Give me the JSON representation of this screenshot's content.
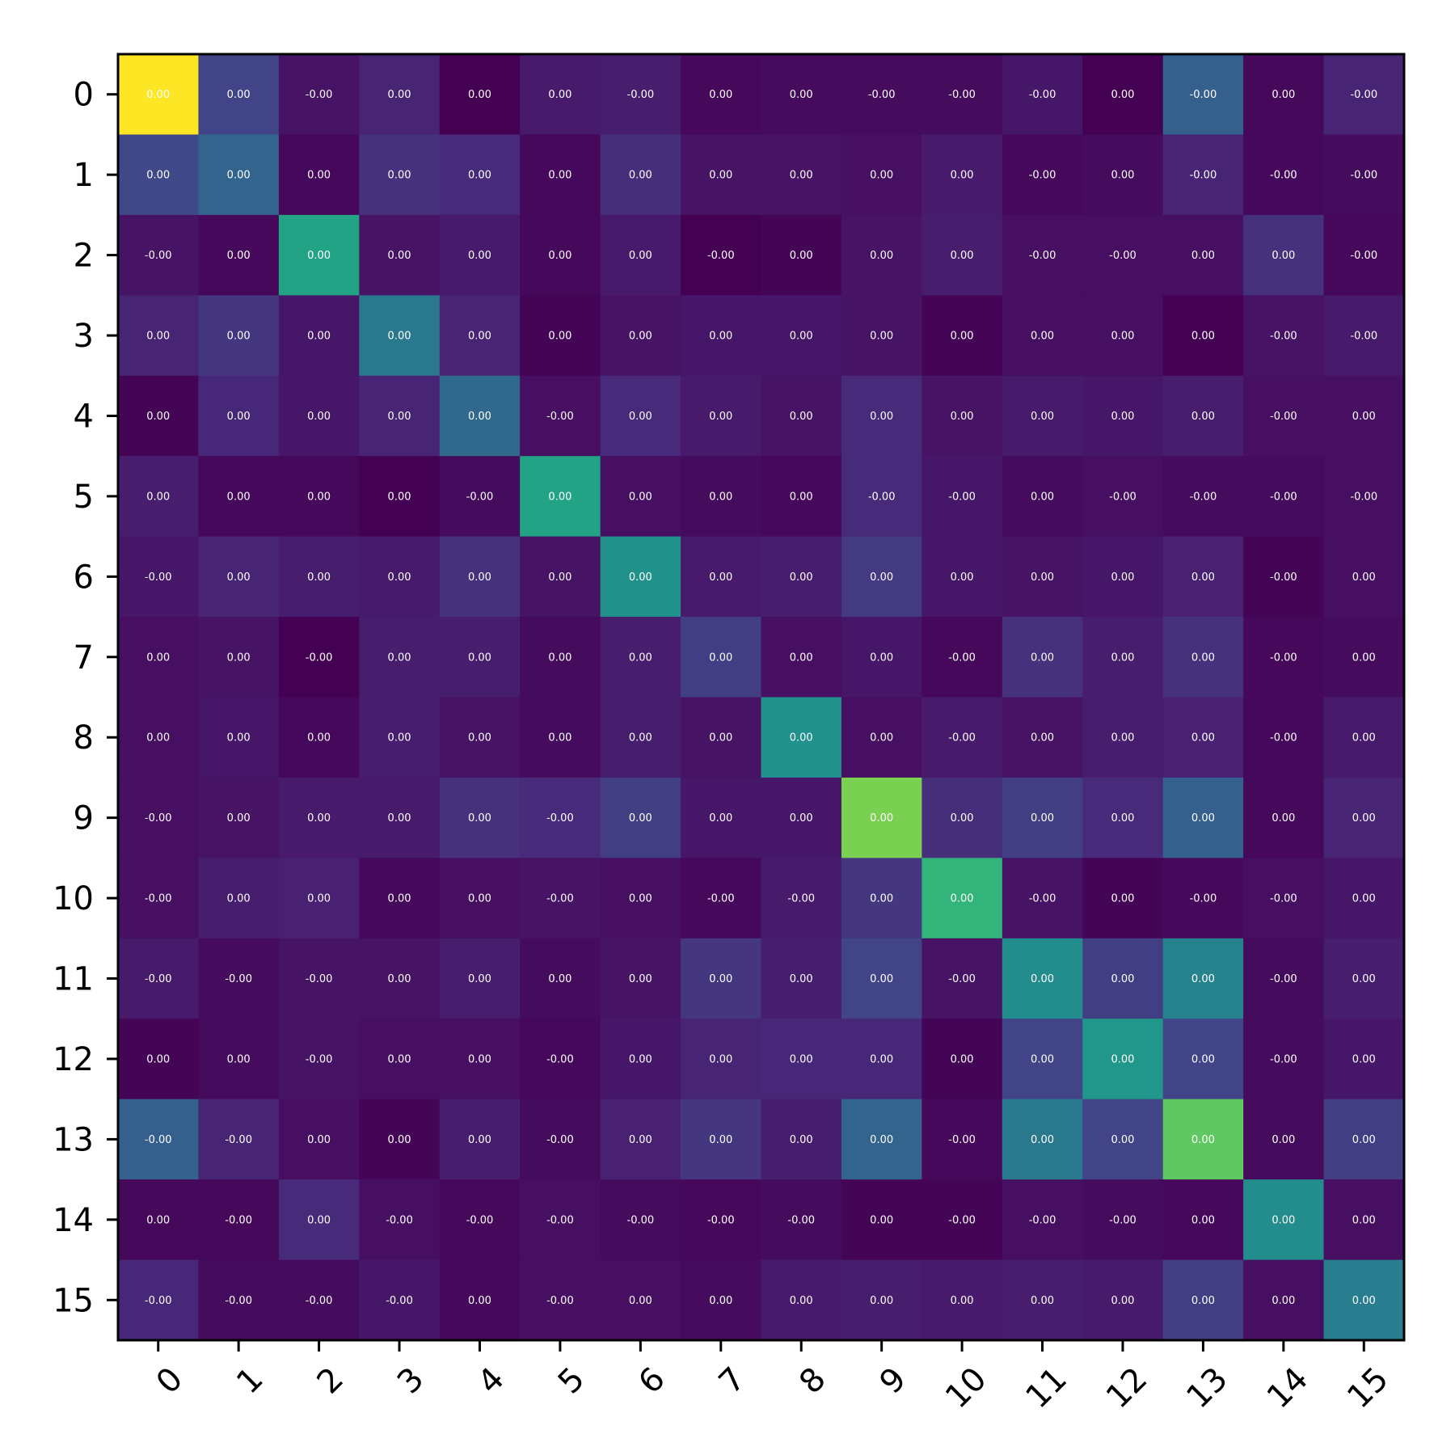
{
  "chart_data": {
    "type": "heatmap",
    "title": "",
    "xlabel": "",
    "ylabel": "",
    "x_categories": [
      "0",
      "1",
      "2",
      "3",
      "4",
      "5",
      "6",
      "7",
      "8",
      "9",
      "10",
      "11",
      "12",
      "13",
      "14",
      "15"
    ],
    "y_categories": [
      "0",
      "1",
      "2",
      "3",
      "4",
      "5",
      "6",
      "7",
      "8",
      "9",
      "10",
      "11",
      "12",
      "13",
      "14",
      "15"
    ],
    "colormap": "viridis",
    "color_range": [
      0,
      1
    ],
    "grid": false,
    "legend": "none",
    "cell_labels": [
      [
        "0.00",
        "0.00",
        "-0.00",
        "0.00",
        "0.00",
        "0.00",
        "-0.00",
        "0.00",
        "0.00",
        "-0.00",
        "-0.00",
        "-0.00",
        "0.00",
        "-0.00",
        "0.00",
        "-0.00"
      ],
      [
        "0.00",
        "0.00",
        "0.00",
        "0.00",
        "0.00",
        "0.00",
        "0.00",
        "0.00",
        "0.00",
        "0.00",
        "0.00",
        "-0.00",
        "0.00",
        "-0.00",
        "-0.00",
        "-0.00"
      ],
      [
        "-0.00",
        "0.00",
        "0.00",
        "0.00",
        "0.00",
        "0.00",
        "0.00",
        "-0.00",
        "0.00",
        "0.00",
        "0.00",
        "-0.00",
        "-0.00",
        "0.00",
        "0.00",
        "-0.00"
      ],
      [
        "0.00",
        "0.00",
        "0.00",
        "0.00",
        "0.00",
        "0.00",
        "0.00",
        "0.00",
        "0.00",
        "0.00",
        "0.00",
        "0.00",
        "0.00",
        "0.00",
        "-0.00",
        "-0.00"
      ],
      [
        "0.00",
        "0.00",
        "0.00",
        "0.00",
        "0.00",
        "-0.00",
        "0.00",
        "0.00",
        "0.00",
        "0.00",
        "0.00",
        "0.00",
        "0.00",
        "0.00",
        "-0.00",
        "0.00"
      ],
      [
        "0.00",
        "0.00",
        "0.00",
        "0.00",
        "-0.00",
        "0.00",
        "0.00",
        "0.00",
        "0.00",
        "-0.00",
        "-0.00",
        "0.00",
        "-0.00",
        "-0.00",
        "-0.00",
        "-0.00"
      ],
      [
        "-0.00",
        "0.00",
        "0.00",
        "0.00",
        "0.00",
        "0.00",
        "0.00",
        "0.00",
        "0.00",
        "0.00",
        "0.00",
        "0.00",
        "0.00",
        "0.00",
        "-0.00",
        "0.00"
      ],
      [
        "0.00",
        "0.00",
        "-0.00",
        "0.00",
        "0.00",
        "0.00",
        "0.00",
        "0.00",
        "0.00",
        "0.00",
        "-0.00",
        "0.00",
        "0.00",
        "0.00",
        "-0.00",
        "0.00"
      ],
      [
        "0.00",
        "0.00",
        "0.00",
        "0.00",
        "0.00",
        "0.00",
        "0.00",
        "0.00",
        "0.00",
        "0.00",
        "-0.00",
        "0.00",
        "0.00",
        "0.00",
        "-0.00",
        "0.00"
      ],
      [
        "-0.00",
        "0.00",
        "0.00",
        "0.00",
        "0.00",
        "-0.00",
        "0.00",
        "0.00",
        "0.00",
        "0.00",
        "0.00",
        "0.00",
        "0.00",
        "0.00",
        "0.00",
        "0.00"
      ],
      [
        "-0.00",
        "0.00",
        "0.00",
        "0.00",
        "0.00",
        "-0.00",
        "0.00",
        "-0.00",
        "-0.00",
        "0.00",
        "0.00",
        "-0.00",
        "0.00",
        "-0.00",
        "-0.00",
        "0.00"
      ],
      [
        "-0.00",
        "-0.00",
        "-0.00",
        "0.00",
        "0.00",
        "0.00",
        "0.00",
        "0.00",
        "0.00",
        "0.00",
        "-0.00",
        "0.00",
        "0.00",
        "0.00",
        "-0.00",
        "0.00"
      ],
      [
        "0.00",
        "0.00",
        "-0.00",
        "0.00",
        "0.00",
        "-0.00",
        "0.00",
        "0.00",
        "0.00",
        "0.00",
        "0.00",
        "0.00",
        "0.00",
        "0.00",
        "-0.00",
        "0.00"
      ],
      [
        "-0.00",
        "-0.00",
        "0.00",
        "0.00",
        "0.00",
        "-0.00",
        "0.00",
        "0.00",
        "0.00",
        "0.00",
        "-0.00",
        "0.00",
        "0.00",
        "0.00",
        "0.00",
        "0.00"
      ],
      [
        "0.00",
        "-0.00",
        "0.00",
        "-0.00",
        "-0.00",
        "-0.00",
        "-0.00",
        "-0.00",
        "-0.00",
        "0.00",
        "-0.00",
        "-0.00",
        "-0.00",
        "0.00",
        "0.00",
        "0.00"
      ],
      [
        "-0.00",
        "-0.00",
        "-0.00",
        "-0.00",
        "0.00",
        "-0.00",
        "0.00",
        "0.00",
        "0.00",
        "0.00",
        "0.00",
        "0.00",
        "0.00",
        "0.00",
        "0.00",
        "0.00"
      ]
    ],
    "color_values": [
      [
        1.0,
        0.2,
        0.05,
        0.1,
        0.0,
        0.07,
        0.08,
        0.02,
        0.03,
        0.03,
        0.03,
        0.06,
        0.0,
        0.3,
        0.02,
        0.1
      ],
      [
        0.22,
        0.32,
        0.02,
        0.14,
        0.12,
        0.02,
        0.13,
        0.05,
        0.05,
        0.04,
        0.07,
        0.02,
        0.03,
        0.1,
        0.02,
        0.03
      ],
      [
        0.05,
        0.02,
        0.58,
        0.05,
        0.07,
        0.02,
        0.07,
        0.0,
        0.01,
        0.05,
        0.08,
        0.04,
        0.04,
        0.04,
        0.14,
        0.02
      ],
      [
        0.1,
        0.16,
        0.06,
        0.4,
        0.1,
        0.01,
        0.05,
        0.06,
        0.06,
        0.05,
        0.01,
        0.04,
        0.04,
        0.0,
        0.05,
        0.07
      ],
      [
        0.01,
        0.11,
        0.06,
        0.1,
        0.34,
        0.04,
        0.12,
        0.07,
        0.05,
        0.12,
        0.05,
        0.07,
        0.06,
        0.08,
        0.04,
        0.04
      ],
      [
        0.08,
        0.02,
        0.02,
        0.0,
        0.03,
        0.58,
        0.04,
        0.03,
        0.02,
        0.12,
        0.06,
        0.03,
        0.04,
        0.03,
        0.03,
        0.04
      ],
      [
        0.06,
        0.1,
        0.08,
        0.07,
        0.14,
        0.05,
        0.5,
        0.07,
        0.08,
        0.17,
        0.06,
        0.05,
        0.06,
        0.09,
        0.01,
        0.04
      ],
      [
        0.04,
        0.05,
        0.0,
        0.08,
        0.08,
        0.03,
        0.08,
        0.18,
        0.04,
        0.06,
        0.02,
        0.14,
        0.08,
        0.14,
        0.02,
        0.03
      ],
      [
        0.04,
        0.06,
        0.02,
        0.08,
        0.05,
        0.03,
        0.08,
        0.05,
        0.5,
        0.04,
        0.07,
        0.05,
        0.08,
        0.09,
        0.02,
        0.07
      ],
      [
        0.04,
        0.05,
        0.07,
        0.07,
        0.14,
        0.12,
        0.18,
        0.06,
        0.06,
        0.8,
        0.13,
        0.18,
        0.12,
        0.3,
        0.02,
        0.1
      ],
      [
        0.04,
        0.08,
        0.09,
        0.02,
        0.04,
        0.05,
        0.04,
        0.02,
        0.07,
        0.16,
        0.65,
        0.05,
        0.01,
        0.02,
        0.04,
        0.06
      ],
      [
        0.07,
        0.03,
        0.05,
        0.05,
        0.08,
        0.03,
        0.05,
        0.16,
        0.08,
        0.2,
        0.05,
        0.48,
        0.18,
        0.44,
        0.03,
        0.08
      ],
      [
        0.01,
        0.03,
        0.05,
        0.04,
        0.04,
        0.02,
        0.06,
        0.1,
        0.11,
        0.11,
        0.01,
        0.2,
        0.52,
        0.2,
        0.03,
        0.06
      ],
      [
        0.3,
        0.1,
        0.04,
        0.01,
        0.08,
        0.03,
        0.09,
        0.16,
        0.08,
        0.32,
        0.02,
        0.4,
        0.2,
        0.75,
        0.03,
        0.18
      ],
      [
        0.02,
        0.02,
        0.12,
        0.04,
        0.02,
        0.04,
        0.03,
        0.02,
        0.03,
        0.01,
        0.01,
        0.04,
        0.03,
        0.02,
        0.48,
        0.04
      ],
      [
        0.11,
        0.03,
        0.03,
        0.06,
        0.02,
        0.04,
        0.04,
        0.03,
        0.07,
        0.08,
        0.07,
        0.08,
        0.07,
        0.18,
        0.04,
        0.42
      ]
    ]
  }
}
